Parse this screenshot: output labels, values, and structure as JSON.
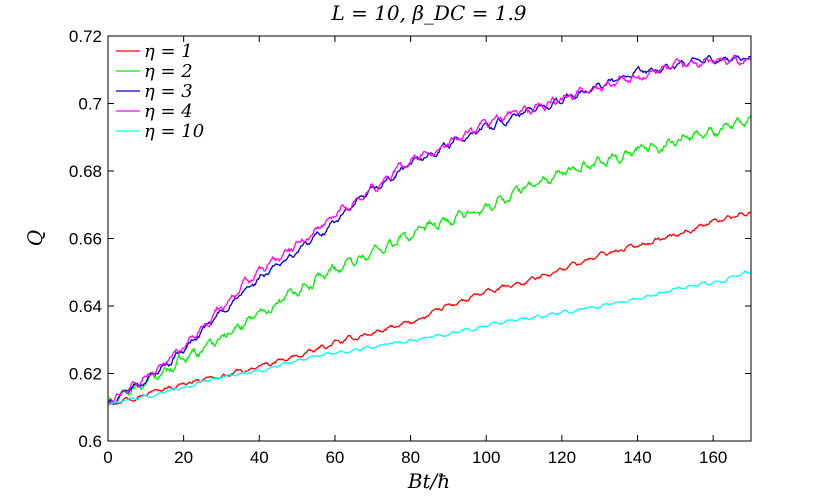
{
  "chart_data": {
    "type": "line",
    "title": "L = 10, β_DC = 1.9",
    "xlabel": "Bt/ħ",
    "ylabel": "Q",
    "xlim": [
      0,
      170
    ],
    "ylim": [
      0.6,
      0.72
    ],
    "xticks": [
      0,
      20,
      40,
      60,
      80,
      100,
      120,
      140,
      160
    ],
    "yticks": [
      0.6,
      0.62,
      0.64,
      0.66,
      0.68,
      0.7,
      0.72
    ],
    "xtick_labels": [
      "0",
      "20",
      "40",
      "60",
      "80",
      "100",
      "120",
      "140",
      "160"
    ],
    "ytick_labels": [
      "0.6",
      "0.62",
      "0.64",
      "0.66",
      "0.68",
      "0.7",
      "0.72"
    ],
    "grid": false,
    "legend_position": "top-left",
    "series": [
      {
        "name": "η = 1",
        "color": "#ff0000",
        "x": [
          0,
          10,
          20,
          30,
          40,
          50,
          60,
          70,
          80,
          90,
          100,
          110,
          120,
          130,
          140,
          150,
          160,
          170
        ],
        "y": [
          0.611,
          0.614,
          0.617,
          0.619,
          0.622,
          0.625,
          0.629,
          0.632,
          0.635,
          0.64,
          0.644,
          0.647,
          0.651,
          0.655,
          0.658,
          0.661,
          0.665,
          0.668
        ]
      },
      {
        "name": "η = 2",
        "color": "#00ee00",
        "x": [
          0,
          10,
          20,
          30,
          40,
          50,
          60,
          70,
          80,
          90,
          100,
          110,
          120,
          130,
          140,
          150,
          160,
          170
        ],
        "y": [
          0.611,
          0.617,
          0.624,
          0.631,
          0.638,
          0.645,
          0.651,
          0.656,
          0.661,
          0.665,
          0.669,
          0.675,
          0.679,
          0.683,
          0.686,
          0.689,
          0.692,
          0.695
        ]
      },
      {
        "name": "η = 3",
        "color": "#0000cc",
        "x": [
          0,
          10,
          20,
          30,
          40,
          50,
          60,
          70,
          80,
          90,
          100,
          110,
          120,
          130,
          140,
          150,
          160,
          170
        ],
        "y": [
          0.611,
          0.618,
          0.627,
          0.638,
          0.648,
          0.656,
          0.665,
          0.674,
          0.682,
          0.688,
          0.693,
          0.697,
          0.701,
          0.705,
          0.709,
          0.711,
          0.713,
          0.713
        ]
      },
      {
        "name": "η = 4",
        "color": "#ff00ff",
        "x": [
          0,
          10,
          20,
          30,
          40,
          50,
          60,
          70,
          80,
          90,
          100,
          110,
          120,
          130,
          140,
          150,
          160,
          170
        ],
        "y": [
          0.611,
          0.619,
          0.628,
          0.64,
          0.65,
          0.658,
          0.667,
          0.675,
          0.683,
          0.688,
          0.694,
          0.698,
          0.701,
          0.705,
          0.708,
          0.711,
          0.713,
          0.713
        ]
      },
      {
        "name": "η = 10",
        "color": "#00ffff",
        "x": [
          0,
          10,
          20,
          30,
          40,
          50,
          60,
          70,
          80,
          90,
          100,
          110,
          120,
          130,
          140,
          150,
          160,
          170
        ],
        "y": [
          0.611,
          0.613,
          0.616,
          0.619,
          0.621,
          0.624,
          0.626,
          0.628,
          0.63,
          0.632,
          0.634,
          0.636,
          0.638,
          0.64,
          0.642,
          0.645,
          0.647,
          0.65
        ]
      }
    ]
  }
}
